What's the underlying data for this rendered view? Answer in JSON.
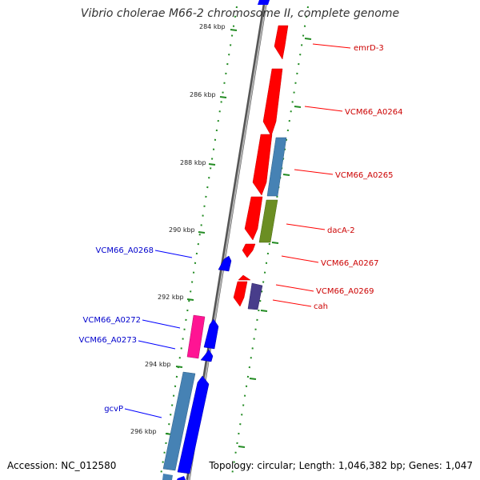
{
  "title": "Vibrio cholerae M66-2 chromosome II, complete genome",
  "accession": "Accession: NC_012580",
  "summary": "Topology: circular; Length: 1,046,382 bp; Genes: 1,047",
  "scale_labels": [
    "284 kbp",
    "286 kbp",
    "288 kbp",
    "290 kbp",
    "292 kbp",
    "294 kbp",
    "296 kbp"
  ],
  "gene_labels": [
    {
      "text": "emrD-3",
      "strand": "forward"
    },
    {
      "text": "VCM66_A0264",
      "strand": "forward"
    },
    {
      "text": "VCM66_A0265",
      "strand": "forward"
    },
    {
      "text": "dacA-2",
      "strand": "forward"
    },
    {
      "text": "VCM66_A0267",
      "strand": "forward"
    },
    {
      "text": "VCM66_A0269",
      "strand": "forward"
    },
    {
      "text": "cah",
      "strand": "forward"
    },
    {
      "text": "VCM66_A0268",
      "strand": "reverse"
    },
    {
      "text": "VCM66_A0272",
      "strand": "reverse"
    },
    {
      "text": "VCM66_A0273",
      "strand": "reverse"
    },
    {
      "text": "gcvP",
      "strand": "reverse"
    }
  ],
  "colors": {
    "forward_label": "#cc0000",
    "reverse_label": "#0000cc",
    "forward_gene": "#ff0000",
    "reverse_gene": "#0000ff",
    "steelblue_gene": "#4682b4",
    "olive_gene": "#6b8e23",
    "purple_gene": "#483d8b",
    "pink_gene": "#ff1493",
    "ruler": "#228b22",
    "backbone": "#8c8c8c"
  }
}
